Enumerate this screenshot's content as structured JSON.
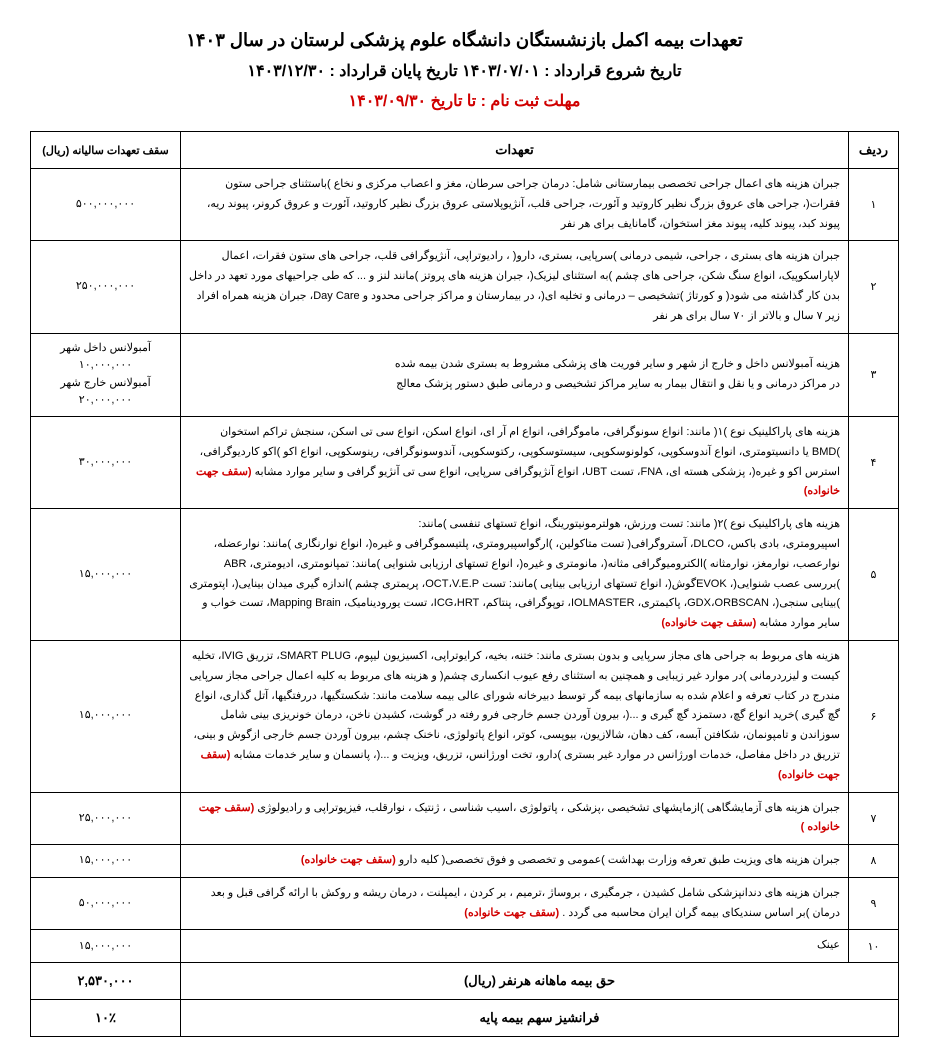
{
  "header": {
    "title": "تعهدات بیمه اکمل بازنشستگان دانشگاه علوم پزشکی لرستان در سال ۱۴۰۳",
    "contract": "تاریخ شروع قرارداد : ۱۴۰۳/۰۷/۰۱  تاریخ پایان قرارداد : ۱۴۰۳/۱۲/۳۰",
    "deadline": "مهلت ثبت نام : تا تاریخ ۱۴۰۳/۰۹/۳۰"
  },
  "columns": {
    "row": "ردیف",
    "desc": "تعهدات",
    "cap": "سقف تعهدات سالیانه (ریال)"
  },
  "rows": [
    {
      "n": "۱",
      "desc": "جبران هزینه های اعمال جراحی تخصصی بیمارستانی شامل: درمان جراحی سرطان، مغز و اعصاب مرکزی و نخاع )باستثنای جراحی ستون فقرات(، جراحی های عروق بزرگ نظیر کاروتید و آئورت، جراحی قلب، آنژیوپلاستی عروق بزرگ نظیر کاروتید، آئورت و عروق کرونر، پیوند ریه، پیوند کبد، پیوند کلیه، پیوند مغز استخوان، گامانایف برای هر نفر",
      "cap": "۵۰۰,۰۰۰,۰۰۰"
    },
    {
      "n": "۲",
      "desc": "جبران هزینه های بستری ، جراحی، شیمی درمانی )سرپایی، بستری، دارو( ، رادیوتراپی، آنژیوگرافی قلب، جراحی های ستون فقرات، اعمال لاپاراسکوپیک، انواع سنگ شکن، جراحی های چشم )به استثنای لیزیک(، جبران هزینه های پروتز )مانند لنز و ... که طی جراحیهای مورد تعهد در داخل بدن کار گذاشته می شود( و کورتاژ )تشخیصی – درمانی و تخلیه ای(، در بیمارستان و مراکز جراحی محدود و Day Care، جبران هزینه همراه افراد زیر ۷ سال و بالاتر از ۷۰ سال برای هر نفر",
      "cap": "۲۵۰,۰۰۰,۰۰۰"
    },
    {
      "n": "۳",
      "desc": "هزینه آمبولانس داخل و خارج از شهر و سایر فوریت های پزشکی مشروط به بستری شدن بیمه شده\nدر مراکز درمانی و یا نقل و انتقال بیمار به سایر مراکز تشخیصی و درمانی طبق دستور پزشک معالج",
      "cap": "آمبولانس داخل شهر ۱۰,۰۰۰,۰۰۰\nآمبولانس خارج شهر ۲۰,۰۰۰,۰۰۰"
    },
    {
      "n": "۴",
      "desc": "هزینه های پاراکلینیک نوع )۱( مانند: انواع سونوگرافی، ماموگرافی، انواع ام آر ای، انواع اسکن، انواع سی تی اسکن، سنجش تراکم استخوان )BMD یا دانسیتومتری، انواع آندوسکوپی، کولونوسکوپی، سیستوسکوپی، رکتوسکوپی، آندوسونوگرافی، رینوسکوپی، انواع اکو )اکو کاردیوگرافی، استرس اکو و غیره(، پزشکی هسته ای، FNA، تست UBT، انواع آنژیوگرافی سرپایی، انواع سی تی آنژیو گرافی و سایر موارد مشابه",
      "desc_red": "(سقف جهت خانواده)",
      "cap": "۳۰,۰۰۰,۰۰۰"
    },
    {
      "n": "۵",
      "desc": "هزینه های پاراکلینیک نوع )۲( مانند: تست ورزش، هولترمونیتورینگ، انواع تستهای تنفسی )مانند:\nاسپیرومتری، بادی باکس، DLCO، آستروگرافی( تست متاکولین، )ارگواسپیرومتری، پلتیسموگرافی و غیره(، انواع نوارنگاری )مانند: نوارعضله، نوارعصب، نوارمغز، نوارمثانه )الکترومیوگرافی مثانه(، مانومتری و غیره(، انواع تستهای ارزیابی شنوایی )مانند: تمپانومتری، ادیومتری، ABR )بررسی عصب شنوایی(، EVOKگوش(، انواع تستهای ارزیابی بینایی )مانند: تست OCT،V.E.P، پریمتری چشم  )اندازه گیری میدان بینایی(، اپتومتری )بینایی سنجی(، GDX،ORBSCAN، پاکیمتری، IOLMASTER، توپوگرافی، پنتاکم، ICG،HRT، تست یورودینامیک، Mapping Brain، تست خواب و سایر موارد مشابه",
      "desc_red": "(سقف جهت خانواده)",
      "cap": "۱۵,۰۰۰,۰۰۰"
    },
    {
      "n": "۶",
      "desc": "هزینه های مربوط به جراحی های مجاز سرپایی و بدون بستری مانند: ختنه، بخیه، کرایوتراپی، اکسیزیون لیپوم، SMART PLUG، تزریق IVIG، تخلیه کیست و لیزردرمانی )در موارد غیر زیبایی و همچنین به استثنای رفع عیوب انکساری چشم( و هزینه های مربوط به کلیه اعمال جراحی مجاز سرپایی مندرج در کتاب تعرفه و اعلام شده به سازمانهای بیمه گر توسط دبیرخانه شورای عالی بیمه سلامت مانند: شکستگیها، دررفتگیها، آتل گذاری، انواع گچ گیری )خرید انواع گچ، دستمزد گچ گیری و ...(، بیرون آوردن جسم خارجی فرو رفته در گوشت، کشیدن ناخن، درمان خونریزی بینی شامل سوزاندن و تامپونمان، شکافتن آبسه، کف دهان، شالازیون، بیوپسی، کوتر، انواع پاتولوژی، ناخنک چشم، بیرون آوردن جسم خارجی ازگوش و بینی، تزریق در داخل مفاصل، خدمات اورژانس در موارد غیر بستری )دارو، تخت اورژانس، تزریق، ویزیت و ...(، پانسمان و سایر خدمات مشابه",
      "desc_red": "(سقف جهت خانواده)",
      "cap": "۱۵,۰۰۰,۰۰۰"
    },
    {
      "n": "۷",
      "desc": "جبران هزینه های آزمایشگاهی )ازمایشهای تشخیصی ،پزشکی ، پاتولوژی ،اسیب شناسی ، ژنتیک ، نوارقلب، فیزیوتراپی و رادیولوژی",
      "desc_red": "(سقف جهت خانواده )",
      "cap": "۲۵,۰۰۰,۰۰۰"
    },
    {
      "n": "۸",
      "desc": "جبران هزینه های ویزیت طبق تعرفه وزارت بهداشت )عمومی و تخصصی و فوق تخصصی( کلیه دارو",
      "desc_red": "(سقف جهت خانواده)",
      "cap": "۱۵,۰۰۰,۰۰۰"
    },
    {
      "n": "۹",
      "desc": "جبران هزینه های دندانپزشکی شامل کشیدن ، جرمگیری ، بروساژ ،ترمیم ، بر کردن ، ایمپلنت ، درمان ریشه و روکش با ارائه گرافی قبل و بعد درمان )بر اساس سندیکای بیمه گران ایران محاسبه می گردد .",
      "desc_red": "(سقف جهت خانواده)",
      "cap": "۵۰,۰۰۰,۰۰۰"
    },
    {
      "n": "۱۰",
      "desc": "عینک",
      "cap": "۱۵,۰۰۰,۰۰۰"
    }
  ],
  "footer": {
    "premium_label": "حق بیمه ماهانه هرنفر (ریال)",
    "premium_value": "۲,۵۳۰,۰۰۰",
    "franchise_label": "فرانشیز سهم بیمه پایه",
    "franchise_value": "۱۰٪"
  }
}
